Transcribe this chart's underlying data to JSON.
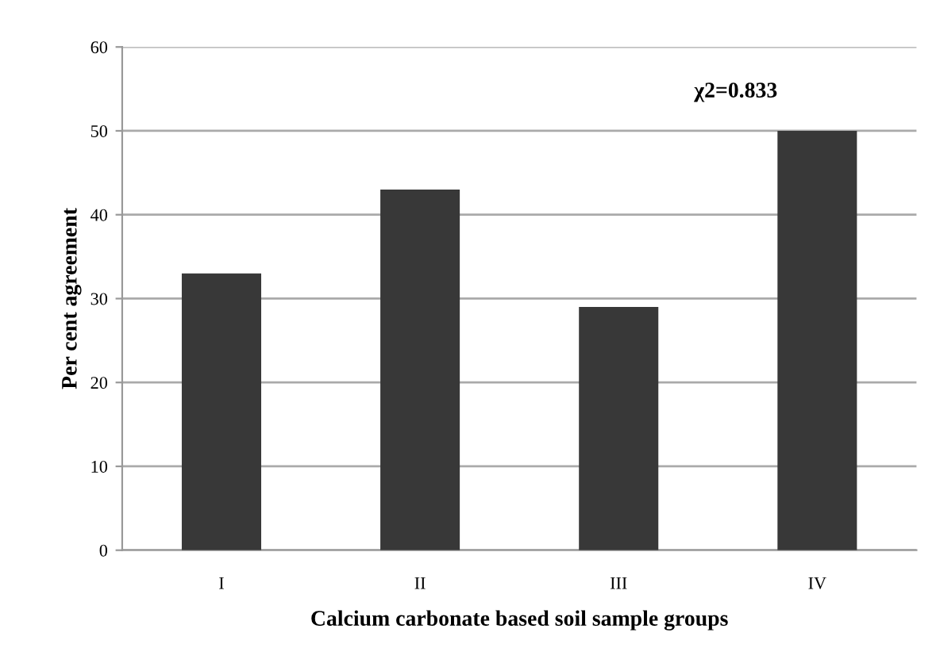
{
  "chart_data": {
    "type": "bar",
    "xlabel": "Calcium carbonate based soil sample groups",
    "ylabel": "Per cent agreement",
    "categories": [
      "I",
      "II",
      "III",
      "IV"
    ],
    "values": [
      33,
      43,
      29,
      50
    ],
    "color": "#383838",
    "ylim": [
      0,
      60
    ],
    "yticks": [
      0,
      10,
      20,
      30,
      40,
      50,
      60
    ],
    "grid": "y",
    "annotations": [
      "χ2=0.833"
    ]
  }
}
